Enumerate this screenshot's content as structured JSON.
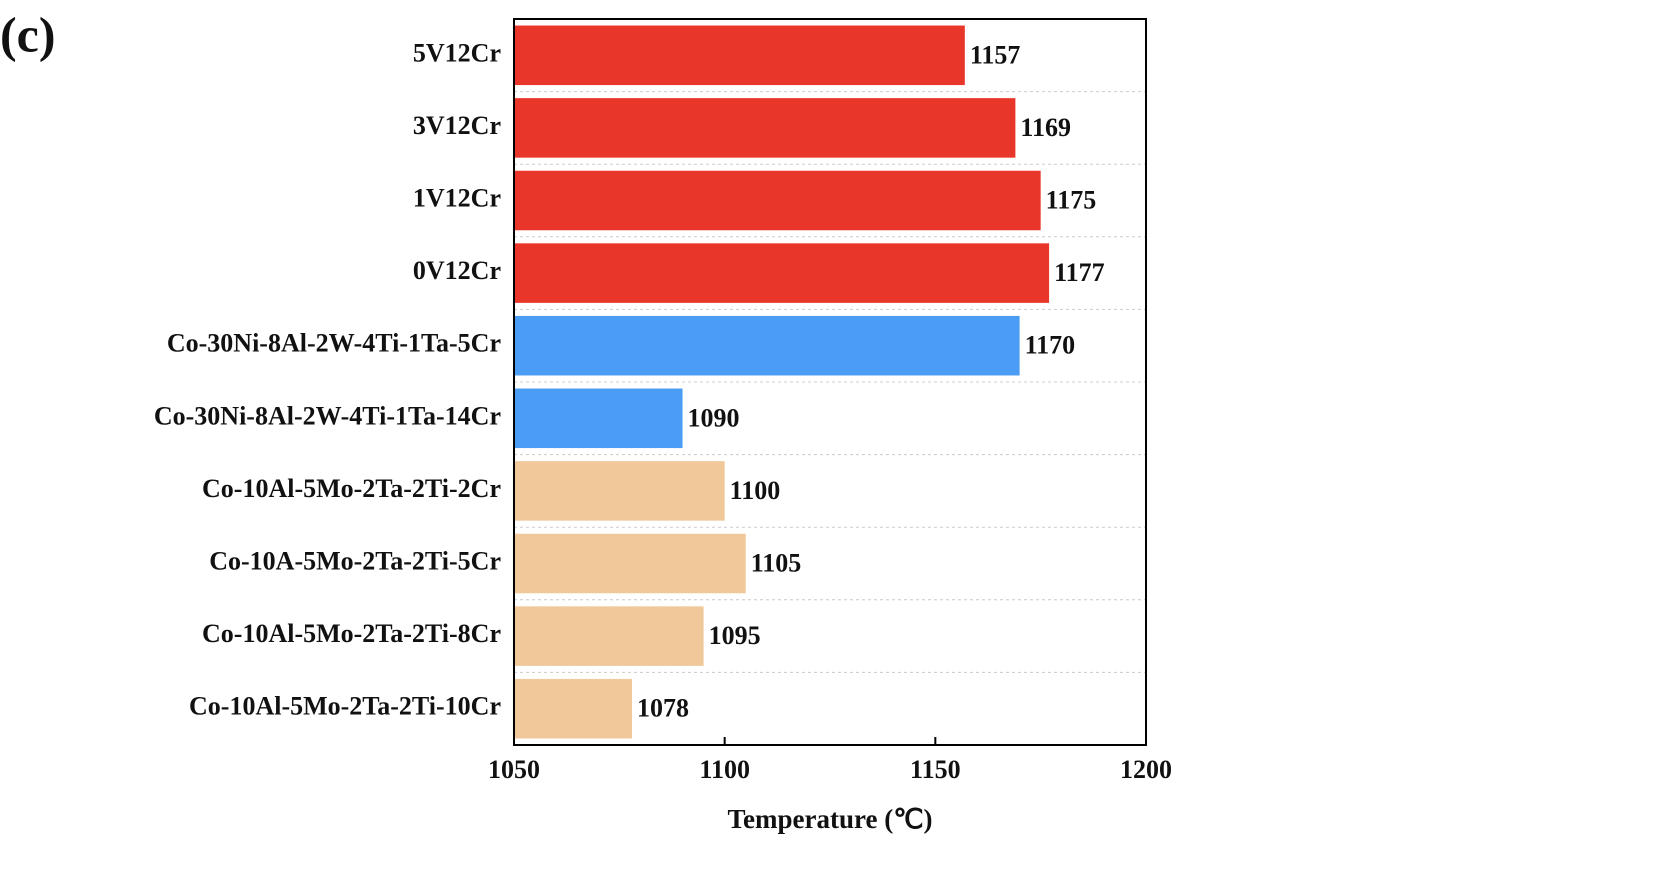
{
  "chart_data": {
    "type": "barh",
    "panel_label": "(c)",
    "xlabel": "Temperature (℃)",
    "categories": [
      "5V12Cr",
      "3V12Cr",
      "1V12Cr",
      "0V12Cr",
      "Co-30Ni-8Al-2W-4Ti-1Ta-5Cr",
      "Co-30Ni-8Al-2W-4Ti-1Ta-14Cr",
      "Co-10Al-5Mo-2Ta-2Ti-2Cr",
      "Co-10A-5Mo-2Ta-2Ti-5Cr",
      "Co-10Al-5Mo-2Ta-2Ti-8Cr",
      "Co-10Al-5Mo-2Ta-2Ti-10Cr"
    ],
    "values": [
      1157,
      1169,
      1175,
      1177,
      1170,
      1090,
      1100,
      1105,
      1095,
      1078
    ],
    "colors": [
      "#e8372a",
      "#e8372a",
      "#e8372a",
      "#e8372a",
      "#4a9cf4",
      "#4a9cf4",
      "#f0c89a",
      "#f0c89a",
      "#f0c89a",
      "#f0c89a"
    ],
    "xlim": [
      1050,
      1200
    ],
    "xticks": [
      1050,
      1100,
      1150,
      1200
    ]
  }
}
